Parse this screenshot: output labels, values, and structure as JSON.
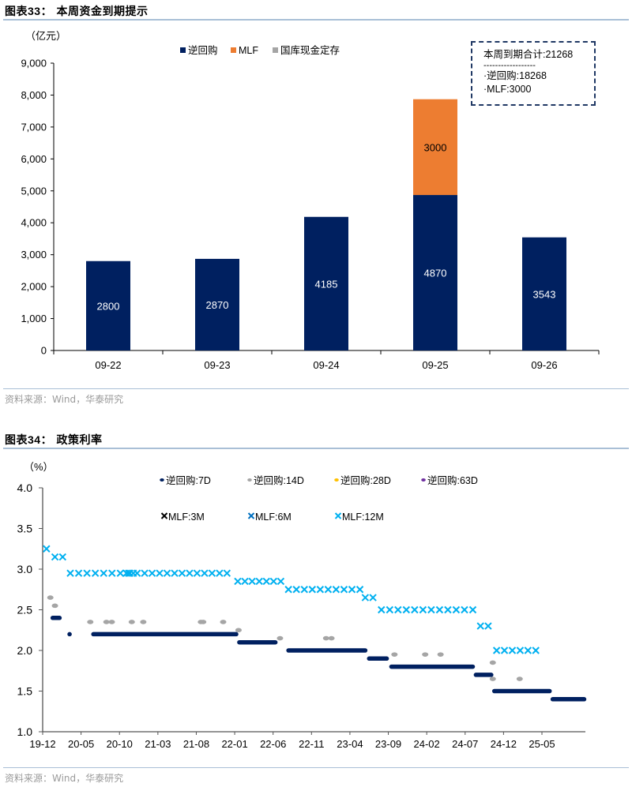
{
  "figure33": {
    "title_prefix": "图表33：",
    "title": "本周资金到期提示",
    "source": "资料来源：Wind，华泰研究",
    "note": {
      "total": "本周到期合计:21268",
      "separator": "------------------",
      "line1": "·逆回购:18268",
      "line2": "·MLF:3000"
    }
  },
  "figure34": {
    "title_prefix": "图表34：",
    "title": "政策利率",
    "source": "资料来源：Wind，华泰研究"
  },
  "chart_data": [
    {
      "type": "bar",
      "stacked": true,
      "title": "本周资金到期提示",
      "ylabel": "（亿元）",
      "xlabel": "",
      "categories": [
        "09-22",
        "09-23",
        "09-24",
        "09-25",
        "09-26"
      ],
      "series": [
        {
          "name": "逆回购",
          "color": "#002060",
          "values": [
            2800,
            2870,
            4185,
            4870,
            3543
          ]
        },
        {
          "name": "MLF",
          "color": "#ed7d31",
          "values": [
            0,
            0,
            0,
            3000,
            0
          ]
        },
        {
          "name": "国库现金定存",
          "color": "#a5a5a5",
          "values": [
            0,
            0,
            0,
            0,
            0
          ]
        }
      ],
      "data_labels": [
        {
          "category": "09-22",
          "series": "逆回购",
          "text": "2800"
        },
        {
          "category": "09-23",
          "series": "逆回购",
          "text": "2870"
        },
        {
          "category": "09-24",
          "series": "逆回购",
          "text": "4185"
        },
        {
          "category": "09-25",
          "series": "逆回购",
          "text": "4870"
        },
        {
          "category": "09-25",
          "series": "MLF",
          "text": "3000"
        },
        {
          "category": "09-26",
          "series": "逆回购",
          "text": "3543"
        }
      ],
      "ylim": [
        0,
        9000
      ],
      "yticks": [
        "0",
        "1,000",
        "2,000",
        "3,000",
        "4,000",
        "5,000",
        "6,000",
        "7,000",
        "8,000",
        "9,000"
      ],
      "ytick_values": [
        0,
        1000,
        2000,
        3000,
        4000,
        5000,
        6000,
        7000,
        8000,
        9000
      ],
      "legend_position": "top-center",
      "grid": false
    },
    {
      "type": "scatter",
      "title": "政策利率",
      "ylabel": "（%）",
      "xlabel": "",
      "x_unit": "months since 2019-12",
      "xlim": [
        0,
        72
      ],
      "ylim": [
        1.0,
        4.0
      ],
      "yticks": [
        "1.0",
        "1.5",
        "2.0",
        "2.5",
        "3.0",
        "3.5",
        "4.0"
      ],
      "ytick_values": [
        1.0,
        1.5,
        2.0,
        2.5,
        3.0,
        3.5,
        4.0
      ],
      "xticks": [
        "19-12",
        "20-05",
        "20-10",
        "21-03",
        "21-08",
        "22-01",
        "22-06",
        "22-11",
        "23-04",
        "23-09",
        "24-02",
        "24-07",
        "24-12",
        "25-05"
      ],
      "xtick_values": [
        0,
        5,
        10,
        15,
        20,
        25,
        30,
        35,
        40,
        45,
        50,
        55,
        60,
        65
      ],
      "legend_position": "top-center",
      "grid": false,
      "series": [
        {
          "name": "逆回购:7D",
          "marker": "dot",
          "color": "#002060",
          "segments": [
            [
              1.3,
              2.2,
              2.4
            ],
            [
              3.5,
              3.5,
              2.2
            ],
            [
              6.6,
              25.2,
              2.2
            ],
            [
              25.6,
              30.3,
              2.1
            ],
            [
              32.0,
              42.0,
              2.0
            ],
            [
              42.5,
              44.8,
              1.9
            ],
            [
              45.4,
              56.0,
              1.8
            ],
            [
              56.4,
              58.4,
              1.7
            ],
            [
              58.8,
              66.0,
              1.5
            ],
            [
              66.4,
              70.5,
              1.4
            ]
          ]
        },
        {
          "name": "逆回购:14D",
          "marker": "dot",
          "color": "#a5a5a5",
          "points": [
            [
              1.0,
              2.65
            ],
            [
              1.6,
              2.55
            ],
            [
              6.2,
              2.35
            ],
            [
              8.3,
              2.35
            ],
            [
              9.0,
              2.35
            ],
            [
              11.6,
              2.35
            ],
            [
              13.1,
              2.35
            ],
            [
              20.6,
              2.35
            ],
            [
              20.9,
              2.35
            ],
            [
              23.5,
              2.35
            ],
            [
              25.5,
              2.25
            ],
            [
              30.9,
              2.15
            ],
            [
              36.9,
              2.15
            ],
            [
              37.6,
              2.15
            ],
            [
              45.8,
              1.95
            ],
            [
              49.8,
              1.95
            ],
            [
              51.8,
              1.95
            ],
            [
              58.6,
              1.85
            ],
            [
              58.6,
              1.65
            ],
            [
              62.1,
              1.65
            ]
          ]
        },
        {
          "name": "逆回购:28D",
          "marker": "dot",
          "color": "#ffc000",
          "points": []
        },
        {
          "name": "逆回购:63D",
          "marker": "dot",
          "color": "#7030a0",
          "points": []
        },
        {
          "name": "MLF:3M",
          "marker": "x",
          "color": "#000000",
          "points": []
        },
        {
          "name": "MLF:6M",
          "marker": "x",
          "color": "#0070c0",
          "points": []
        },
        {
          "name": "MLF:12M",
          "marker": "x",
          "color": "#00b0f0",
          "groups": [
            [
              0.5,
              0.5,
              3.25,
              1
            ],
            [
              1.6,
              2.6,
              3.15,
              2
            ],
            [
              3.6,
              11.2,
              2.95,
              8
            ],
            [
              10.9,
              11.8,
              2.95,
              3
            ],
            [
              12.3,
              24.0,
              2.95,
              13
            ],
            [
              25.4,
              31.0,
              2.85,
              7
            ],
            [
              32.0,
              41.3,
              2.75,
              10
            ],
            [
              42.0,
              43.0,
              2.65,
              2
            ],
            [
              44.1,
              56.0,
              2.5,
              12
            ],
            [
              57.0,
              58.0,
              2.3,
              2
            ],
            [
              59.1,
              64.2,
              2.0,
              6
            ]
          ]
        }
      ]
    }
  ]
}
